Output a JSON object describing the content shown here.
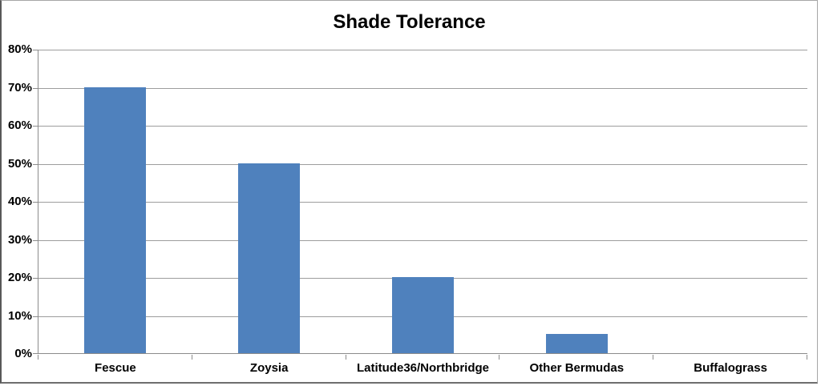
{
  "chart_title": "Shade Tolerance",
  "chart_data": {
    "type": "bar",
    "title": "Shade Tolerance",
    "categories": [
      "Fescue",
      "Zoysia",
      "Latitude36/Northbridge",
      "Other Bermudas",
      "Buffalograss"
    ],
    "values": [
      70,
      50,
      20,
      5,
      0
    ],
    "value_format": "percent",
    "xlabel": "",
    "ylabel": "",
    "ylim": [
      0,
      80
    ],
    "ytick_step": 10,
    "ytick_labels": [
      "0%",
      "10%",
      "20%",
      "30%",
      "40%",
      "50%",
      "60%",
      "70%",
      "80%"
    ],
    "grid": true,
    "legend_position": "none",
    "colors": {
      "bar": "#4f81bd",
      "gridline": "#9d9d9d",
      "axis": "#8c8c8c",
      "text": "#000000",
      "background": "#ffffff"
    }
  }
}
